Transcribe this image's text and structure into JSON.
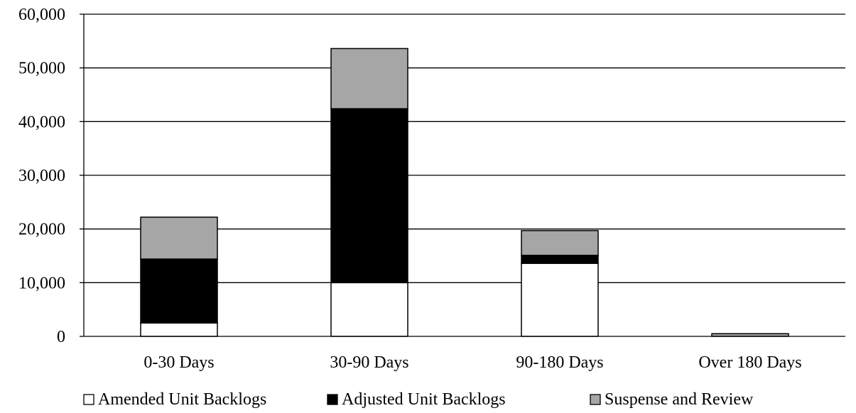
{
  "chart_data": {
    "type": "bar",
    "stacked": true,
    "categories": [
      "0-30 Days",
      "30-90 Days",
      "90-180 Days",
      "Over 180 Days"
    ],
    "series": [
      {
        "name": "Amended Unit Backlogs",
        "color": "#ffffff",
        "values": [
          2500,
          10000,
          13600,
          0
        ]
      },
      {
        "name": "Adjusted Unit Backlogs",
        "color": "#000000",
        "values": [
          11900,
          32400,
          1500,
          0
        ]
      },
      {
        "name": "Suspense and Review",
        "color": "#a6a6a6",
        "values": [
          7800,
          11200,
          4600,
          500
        ]
      }
    ],
    "ylim": [
      0,
      60000
    ],
    "yticks": [
      0,
      10000,
      20000,
      30000,
      40000,
      50000,
      60000
    ],
    "ytick_labels": [
      "0",
      "10,000",
      "20,000",
      "30,000",
      "40,000",
      "50,000",
      "60,000"
    ],
    "grid": true,
    "legend_position": "bottom",
    "title": "",
    "xlabel": "",
    "ylabel": ""
  }
}
